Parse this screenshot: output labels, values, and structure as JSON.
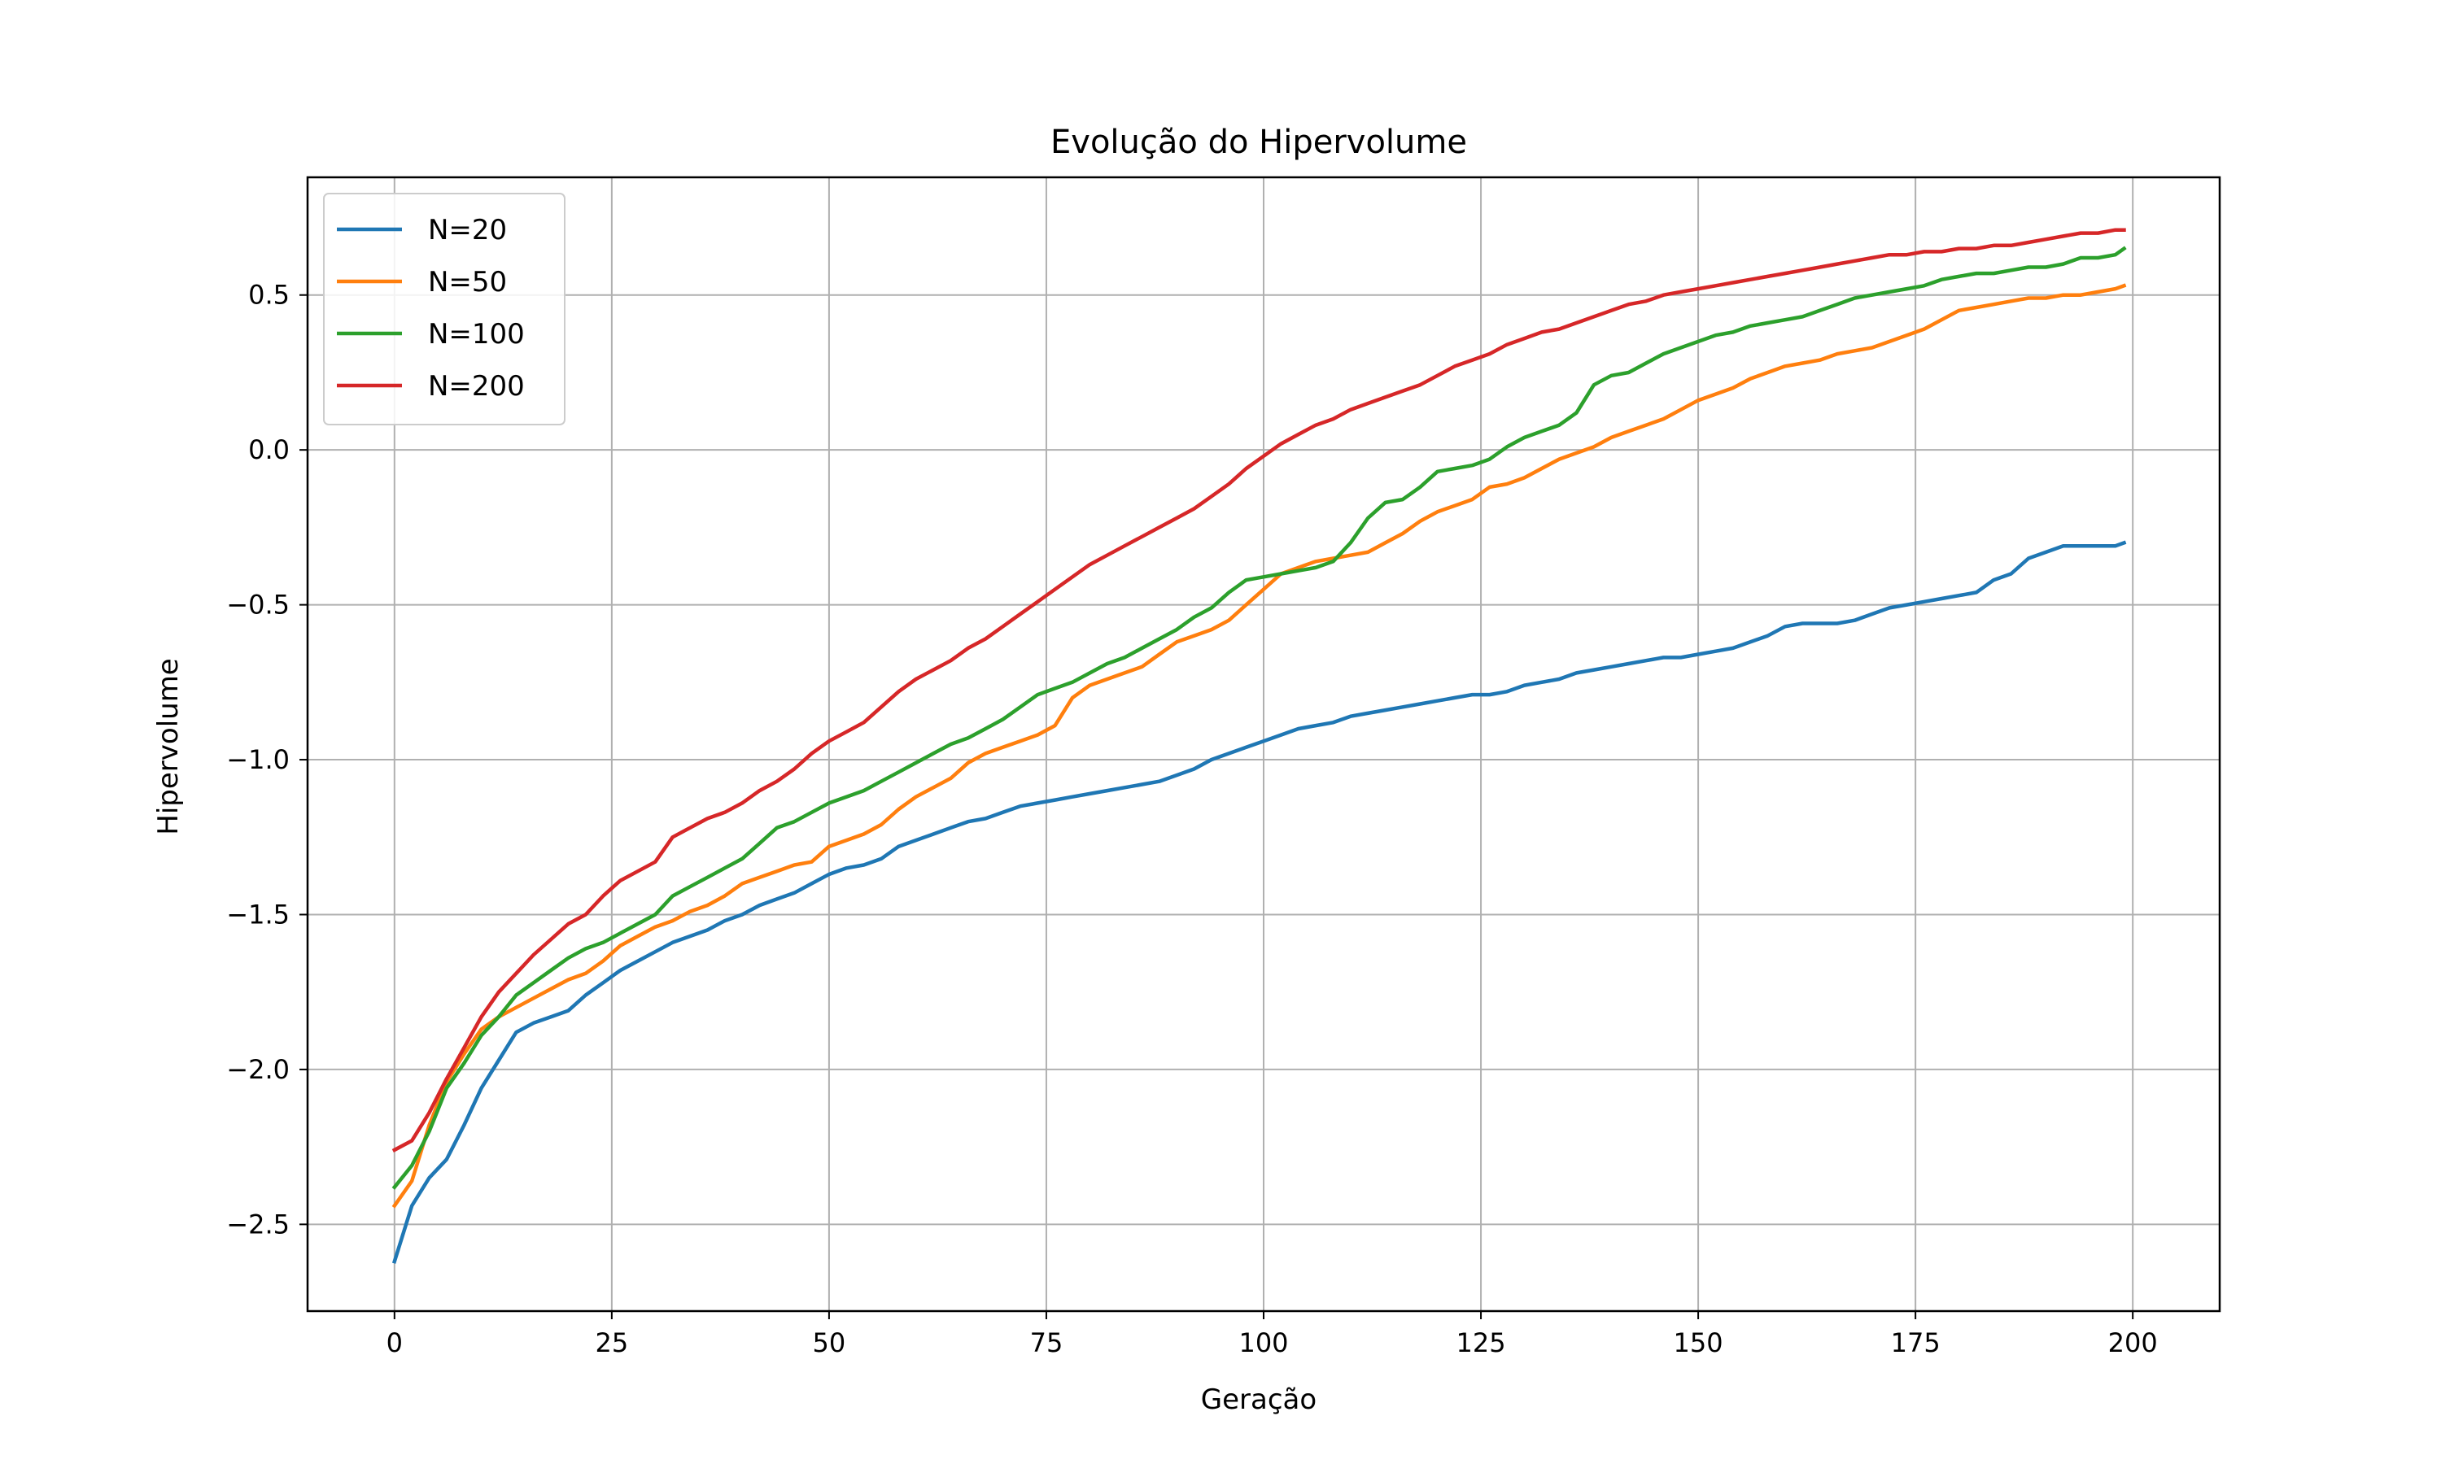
{
  "chart_data": {
    "type": "line",
    "title": "Evolução do Hipervolume",
    "xlabel": "Geração",
    "ylabel": "Hipervolume",
    "xlim": [
      -10,
      210
    ],
    "ylim": [
      -2.78,
      0.88
    ],
    "xticks": [
      0,
      25,
      50,
      75,
      100,
      125,
      150,
      175,
      200
    ],
    "xtick_labels": [
      "0",
      "25",
      "50",
      "75",
      "100",
      "125",
      "150",
      "175",
      "200"
    ],
    "yticks": [
      -2.5,
      -2.0,
      -1.5,
      -1.0,
      -0.5,
      0.0,
      0.5
    ],
    "ytick_labels": [
      "−2.5",
      "−2.0",
      "−1.5",
      "−1.0",
      "−0.5",
      "0.0",
      "0.5"
    ],
    "grid": true,
    "legend_position": "top-left",
    "series": [
      {
        "name": "N=20",
        "color": "#1f77b4",
        "x": [
          0,
          2,
          4,
          6,
          8,
          10,
          12,
          14,
          16,
          18,
          20,
          22,
          24,
          26,
          28,
          30,
          32,
          34,
          36,
          38,
          40,
          42,
          44,
          46,
          48,
          50,
          52,
          54,
          56,
          58,
          60,
          62,
          64,
          66,
          68,
          70,
          72,
          74,
          76,
          78,
          80,
          82,
          84,
          86,
          88,
          90,
          92,
          94,
          96,
          98,
          100,
          102,
          104,
          106,
          108,
          110,
          112,
          114,
          116,
          118,
          120,
          122,
          124,
          126,
          128,
          130,
          132,
          134,
          136,
          138,
          140,
          142,
          144,
          146,
          148,
          150,
          152,
          154,
          156,
          158,
          160,
          162,
          164,
          166,
          168,
          170,
          172,
          174,
          176,
          178,
          180,
          182,
          184,
          186,
          188,
          190,
          192,
          194,
          196,
          198,
          199
        ],
        "values": [
          -2.62,
          -2.44,
          -2.35,
          -2.29,
          -2.18,
          -2.06,
          -1.97,
          -1.88,
          -1.85,
          -1.83,
          -1.81,
          -1.76,
          -1.72,
          -1.68,
          -1.65,
          -1.62,
          -1.59,
          -1.57,
          -1.55,
          -1.52,
          -1.5,
          -1.47,
          -1.45,
          -1.43,
          -1.4,
          -1.37,
          -1.35,
          -1.34,
          -1.32,
          -1.28,
          -1.26,
          -1.24,
          -1.22,
          -1.2,
          -1.19,
          -1.17,
          -1.15,
          -1.14,
          -1.13,
          -1.12,
          -1.11,
          -1.1,
          -1.09,
          -1.08,
          -1.07,
          -1.05,
          -1.03,
          -1.0,
          -0.98,
          -0.96,
          -0.94,
          -0.92,
          -0.9,
          -0.89,
          -0.88,
          -0.86,
          -0.85,
          -0.84,
          -0.83,
          -0.82,
          -0.81,
          -0.8,
          -0.79,
          -0.79,
          -0.78,
          -0.76,
          -0.75,
          -0.74,
          -0.72,
          -0.71,
          -0.7,
          -0.69,
          -0.68,
          -0.67,
          -0.67,
          -0.66,
          -0.65,
          -0.64,
          -0.62,
          -0.6,
          -0.57,
          -0.56,
          -0.56,
          -0.56,
          -0.55,
          -0.53,
          -0.51,
          -0.5,
          -0.49,
          -0.48,
          -0.47,
          -0.46,
          -0.42,
          -0.4,
          -0.35,
          -0.33,
          -0.31,
          -0.31,
          -0.31,
          -0.31,
          -0.3
        ]
      },
      {
        "name": "N=50",
        "color": "#ff7f0e",
        "x": [
          0,
          2,
          4,
          6,
          8,
          10,
          12,
          14,
          16,
          18,
          20,
          22,
          24,
          26,
          28,
          30,
          32,
          34,
          36,
          38,
          40,
          42,
          44,
          46,
          48,
          50,
          52,
          54,
          56,
          58,
          60,
          62,
          64,
          66,
          68,
          70,
          72,
          74,
          76,
          78,
          80,
          82,
          84,
          86,
          88,
          90,
          92,
          94,
          96,
          98,
          100,
          102,
          104,
          106,
          108,
          110,
          112,
          114,
          116,
          118,
          120,
          122,
          124,
          126,
          128,
          130,
          132,
          134,
          136,
          138,
          140,
          142,
          144,
          146,
          148,
          150,
          152,
          154,
          156,
          158,
          160,
          162,
          164,
          166,
          168,
          170,
          172,
          174,
          176,
          178,
          180,
          182,
          184,
          186,
          188,
          190,
          192,
          194,
          196,
          198,
          199
        ],
        "values": [
          -2.44,
          -2.36,
          -2.18,
          -2.04,
          -1.95,
          -1.87,
          -1.83,
          -1.8,
          -1.77,
          -1.74,
          -1.71,
          -1.69,
          -1.65,
          -1.6,
          -1.57,
          -1.54,
          -1.52,
          -1.49,
          -1.47,
          -1.44,
          -1.4,
          -1.38,
          -1.36,
          -1.34,
          -1.33,
          -1.28,
          -1.26,
          -1.24,
          -1.21,
          -1.16,
          -1.12,
          -1.09,
          -1.06,
          -1.01,
          -0.98,
          -0.96,
          -0.94,
          -0.92,
          -0.89,
          -0.8,
          -0.76,
          -0.74,
          -0.72,
          -0.7,
          -0.66,
          -0.62,
          -0.6,
          -0.58,
          -0.55,
          -0.5,
          -0.45,
          -0.4,
          -0.38,
          -0.36,
          -0.35,
          -0.34,
          -0.33,
          -0.3,
          -0.27,
          -0.23,
          -0.2,
          -0.18,
          -0.16,
          -0.12,
          -0.11,
          -0.09,
          -0.06,
          -0.03,
          -0.01,
          0.01,
          0.04,
          0.06,
          0.08,
          0.1,
          0.13,
          0.16,
          0.18,
          0.2,
          0.23,
          0.25,
          0.27,
          0.28,
          0.29,
          0.31,
          0.32,
          0.33,
          0.35,
          0.37,
          0.39,
          0.42,
          0.45,
          0.46,
          0.47,
          0.48,
          0.49,
          0.49,
          0.5,
          0.5,
          0.51,
          0.52,
          0.53
        ]
      },
      {
        "name": "N=100",
        "color": "#2ca02c",
        "x": [
          0,
          2,
          4,
          6,
          8,
          10,
          12,
          14,
          16,
          18,
          20,
          22,
          24,
          26,
          28,
          30,
          32,
          34,
          36,
          38,
          40,
          42,
          44,
          46,
          48,
          50,
          52,
          54,
          56,
          58,
          60,
          62,
          64,
          66,
          68,
          70,
          72,
          74,
          76,
          78,
          80,
          82,
          84,
          86,
          88,
          90,
          92,
          94,
          96,
          98,
          100,
          102,
          104,
          106,
          108,
          110,
          112,
          114,
          116,
          118,
          120,
          122,
          124,
          126,
          128,
          130,
          132,
          134,
          136,
          138,
          140,
          142,
          144,
          146,
          148,
          150,
          152,
          154,
          156,
          158,
          160,
          162,
          164,
          166,
          168,
          170,
          172,
          174,
          176,
          178,
          180,
          182,
          184,
          186,
          188,
          190,
          192,
          194,
          196,
          198,
          199
        ],
        "values": [
          -2.38,
          -2.31,
          -2.2,
          -2.06,
          -1.98,
          -1.89,
          -1.83,
          -1.76,
          -1.72,
          -1.68,
          -1.64,
          -1.61,
          -1.59,
          -1.56,
          -1.53,
          -1.5,
          -1.44,
          -1.41,
          -1.38,
          -1.35,
          -1.32,
          -1.27,
          -1.22,
          -1.2,
          -1.17,
          -1.14,
          -1.12,
          -1.1,
          -1.07,
          -1.04,
          -1.01,
          -0.98,
          -0.95,
          -0.93,
          -0.9,
          -0.87,
          -0.83,
          -0.79,
          -0.77,
          -0.75,
          -0.72,
          -0.69,
          -0.67,
          -0.64,
          -0.61,
          -0.58,
          -0.54,
          -0.51,
          -0.46,
          -0.42,
          -0.41,
          -0.4,
          -0.39,
          -0.38,
          -0.36,
          -0.3,
          -0.22,
          -0.17,
          -0.16,
          -0.12,
          -0.07,
          -0.06,
          -0.05,
          -0.03,
          0.01,
          0.04,
          0.06,
          0.08,
          0.12,
          0.21,
          0.24,
          0.25,
          0.28,
          0.31,
          0.33,
          0.35,
          0.37,
          0.38,
          0.4,
          0.41,
          0.42,
          0.43,
          0.45,
          0.47,
          0.49,
          0.5,
          0.51,
          0.52,
          0.53,
          0.55,
          0.56,
          0.57,
          0.57,
          0.58,
          0.59,
          0.59,
          0.6,
          0.62,
          0.62,
          0.63,
          0.65
        ]
      },
      {
        "name": "N=200",
        "color": "#d62728",
        "x": [
          0,
          2,
          4,
          6,
          8,
          10,
          12,
          14,
          16,
          18,
          20,
          22,
          24,
          26,
          28,
          30,
          32,
          34,
          36,
          38,
          40,
          42,
          44,
          46,
          48,
          50,
          52,
          54,
          56,
          58,
          60,
          62,
          64,
          66,
          68,
          70,
          72,
          74,
          76,
          78,
          80,
          82,
          84,
          86,
          88,
          90,
          92,
          94,
          96,
          98,
          100,
          102,
          104,
          106,
          108,
          110,
          112,
          114,
          116,
          118,
          120,
          122,
          124,
          126,
          128,
          130,
          132,
          134,
          136,
          138,
          140,
          142,
          144,
          146,
          148,
          150,
          152,
          154,
          156,
          158,
          160,
          162,
          164,
          166,
          168,
          170,
          172,
          174,
          176,
          178,
          180,
          182,
          184,
          186,
          188,
          190,
          192,
          194,
          196,
          198,
          199
        ],
        "values": [
          -2.26,
          -2.23,
          -2.14,
          -2.03,
          -1.93,
          -1.83,
          -1.75,
          -1.69,
          -1.63,
          -1.58,
          -1.53,
          -1.5,
          -1.44,
          -1.39,
          -1.36,
          -1.33,
          -1.25,
          -1.22,
          -1.19,
          -1.17,
          -1.14,
          -1.1,
          -1.07,
          -1.03,
          -0.98,
          -0.94,
          -0.91,
          -0.88,
          -0.83,
          -0.78,
          -0.74,
          -0.71,
          -0.68,
          -0.64,
          -0.61,
          -0.57,
          -0.53,
          -0.49,
          -0.45,
          -0.41,
          -0.37,
          -0.34,
          -0.31,
          -0.28,
          -0.25,
          -0.22,
          -0.19,
          -0.15,
          -0.11,
          -0.06,
          -0.02,
          0.02,
          0.05,
          0.08,
          0.1,
          0.13,
          0.15,
          0.17,
          0.19,
          0.21,
          0.24,
          0.27,
          0.29,
          0.31,
          0.34,
          0.36,
          0.38,
          0.39,
          0.41,
          0.43,
          0.45,
          0.47,
          0.48,
          0.5,
          0.51,
          0.52,
          0.53,
          0.54,
          0.55,
          0.56,
          0.57,
          0.58,
          0.59,
          0.6,
          0.61,
          0.62,
          0.63,
          0.63,
          0.64,
          0.64,
          0.65,
          0.65,
          0.66,
          0.66,
          0.67,
          0.68,
          0.69,
          0.7,
          0.7,
          0.71,
          0.71
        ]
      }
    ]
  }
}
